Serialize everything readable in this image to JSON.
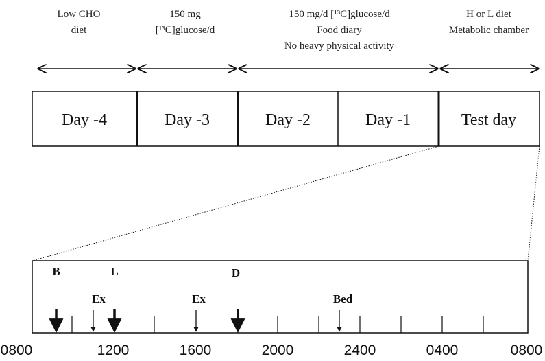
{
  "phases": [
    {
      "lines": [
        "Low CHO",
        "diet"
      ],
      "box": "Day -4"
    },
    {
      "lines": [
        "150 mg",
        "[¹³C]glucose/d"
      ],
      "box": "Day -3"
    },
    {
      "lines": [
        "150 mg/d [¹³C]glucose/d",
        "Food diary",
        "No heavy physical activity"
      ],
      "box": "Day -2"
    },
    {
      "box": "Day -1"
    },
    {
      "lines": [
        "H or L diet",
        "Metabolic chamber"
      ],
      "box": "Test day"
    }
  ],
  "events": [
    "B",
    "L",
    "D",
    "Ex",
    "Ex",
    "Bed"
  ],
  "times": [
    "0800",
    "1200",
    "1600",
    "2000",
    "2400",
    "0400",
    "0800"
  ]
}
